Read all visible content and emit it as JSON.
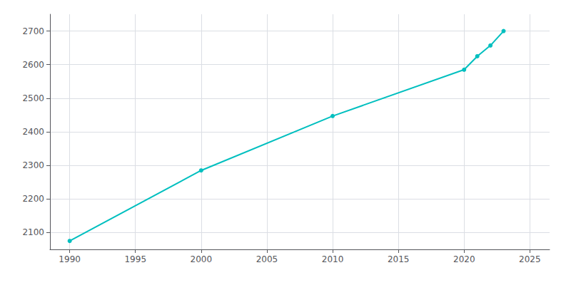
{
  "chart_data": {
    "type": "line",
    "x": [
      1990,
      2000,
      2010,
      2020,
      2021,
      2022,
      2023
    ],
    "values": [
      2075,
      2285,
      2447,
      2585,
      2625,
      2657,
      2700
    ],
    "color": "#00BFBF",
    "marker": "circle",
    "xlim": [
      1988.5,
      2026.5
    ],
    "ylim": [
      2050,
      2750
    ],
    "xticks": [
      1990,
      1995,
      2000,
      2005,
      2010,
      2015,
      2020,
      2025
    ],
    "yticks": [
      2100,
      2200,
      2300,
      2400,
      2500,
      2600,
      2700
    ],
    "grid": true
  }
}
